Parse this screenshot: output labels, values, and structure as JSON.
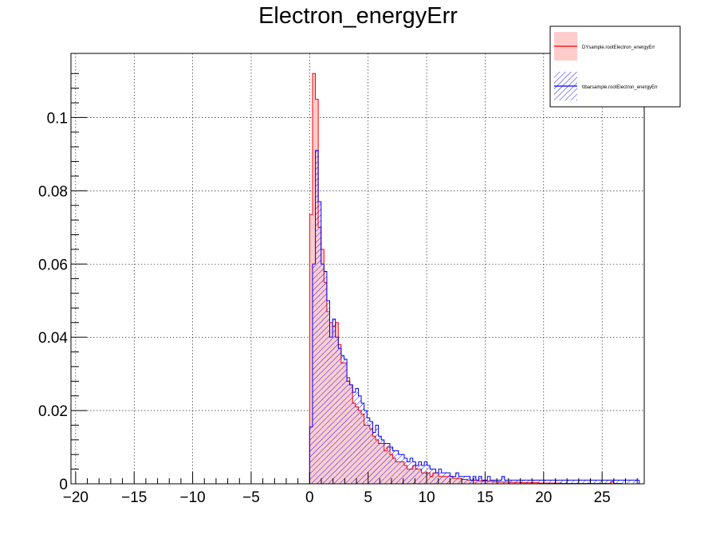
{
  "chart_data": {
    "type": "histogram",
    "title": "Electron_energyErr",
    "xlabel": "",
    "ylabel": "",
    "xlim": [
      -20.4,
      28.6
    ],
    "ylim": [
      0,
      0.1175
    ],
    "grid": true,
    "legend_position": "top-right",
    "x_ticks": [
      -20,
      -15,
      -10,
      -5,
      0,
      5,
      10,
      15,
      20,
      25
    ],
    "x_tick_labels": [
      "−20",
      "−15",
      "−10",
      "−5",
      "0",
      "5",
      "10",
      "15",
      "20",
      "25"
    ],
    "y_ticks": [
      0,
      0.02,
      0.04,
      0.06,
      0.08,
      0.1
    ],
    "y_tick_labels": [
      "0",
      "0.02",
      "0.04",
      "0.06",
      "0.08",
      "0.1"
    ],
    "bin_width": 0.245,
    "series": [
      {
        "name": "DYsample.rootElectron_energyErr",
        "color": "#ff0000",
        "fill": "#ffcccc",
        "x": [
          0.1225,
          0.3675,
          0.6125,
          0.8575,
          1.1025,
          1.3475,
          1.5925,
          1.8375,
          2.0825,
          2.3275,
          2.5725,
          2.8175,
          3.0625,
          3.3075,
          3.5525,
          3.7975,
          4.0425,
          4.2875,
          4.5325,
          4.7775,
          5.0225,
          5.2675,
          5.5125,
          5.7575,
          6.0025,
          6.2475,
          6.4925,
          6.7375,
          6.9825,
          7.2275,
          7.4725,
          7.7175,
          7.9625,
          8.2075,
          8.4525,
          8.6975,
          8.9425,
          9.1875,
          9.4325,
          9.6775,
          9.9225,
          10.1675,
          10.4125,
          10.6575,
          10.9025,
          11.1475,
          11.3925,
          11.6375,
          11.8825,
          12.1275,
          12.3725,
          12.6175,
          12.8625,
          13.1075,
          13.3525,
          13.5975,
          13.8425,
          14.0875,
          14.3325,
          14.5775,
          14.8225,
          15.0675,
          15.3125,
          15.5575,
          15.8025,
          16.0475,
          16.2925,
          16.5375,
          16.7825,
          17.0275,
          17.2725,
          17.5175,
          17.7625,
          18.0075,
          18.2525,
          18.4975,
          18.7425,
          18.9875,
          19.2325,
          19.4775,
          19.7225,
          19.9675,
          20.2125,
          20.4575,
          20.7025,
          20.9475,
          21.1925,
          21.4375,
          21.6825,
          21.9275,
          22.1725,
          22.4175,
          22.6625,
          22.9075,
          23.1525,
          23.3975,
          23.6425,
          23.8875,
          24.1325,
          24.3775,
          24.6225,
          24.8675,
          25.1125,
          25.3575,
          25.6025,
          25.8475,
          26.0925,
          26.3375,
          26.5825
        ],
        "values": [
          0.0735,
          0.112,
          0.105,
          0.07,
          0.064,
          0.055,
          0.047,
          0.044,
          0.043,
          0.044,
          0.038,
          0.033,
          0.033,
          0.029,
          0.027,
          0.022,
          0.021,
          0.02,
          0.019,
          0.016,
          0.016,
          0.015,
          0.013,
          0.012,
          0.011,
          0.011,
          0.009,
          0.01,
          0.008,
          0.007,
          0.006,
          0.006,
          0.006,
          0.005,
          0.004,
          0.004,
          0.005,
          0.004,
          0.004,
          0.003,
          0.003,
          0.003,
          0.002,
          0.003,
          0.003,
          0.002,
          0.002,
          0.002,
          0.002,
          0.002,
          0.0015,
          0.0015,
          0.0015,
          0.0012,
          0.0012,
          0.001,
          0.001,
          0.001,
          0.001,
          0.0008,
          0.0008,
          0.0008,
          0.0007,
          0.0007,
          0.0006,
          0.0006,
          0.0005,
          0.0005,
          0.0005,
          0.0005,
          0.0004,
          0.0004,
          0.0004,
          0.0004,
          0.0003,
          0.0003,
          0.0003,
          0.0003,
          0.0003,
          0.0003,
          0.0002,
          0.0002,
          0.0002,
          0.0002,
          0.0002,
          0.0002,
          0.0002,
          0.0002,
          0.0001,
          0.0001,
          0.0001,
          0.0001,
          0.0001,
          0.0001,
          0.0001,
          0.0001,
          0.0001,
          0.0001,
          0.0001,
          0.0001,
          0.0001,
          0.0001,
          0.0001,
          0.0001,
          0.0001,
          0.0006,
          0.0001,
          0.0001,
          0.0001
        ]
      },
      {
        "name": "ttbarsample.rootElectron_energyErr",
        "color": "#0000ff",
        "fill": "hatched",
        "x": [
          0.1225,
          0.3675,
          0.6125,
          0.8575,
          1.1025,
          1.3475,
          1.5925,
          1.8375,
          2.0825,
          2.3275,
          2.5725,
          2.8175,
          3.0625,
          3.3075,
          3.5525,
          3.7975,
          4.0425,
          4.2875,
          4.5325,
          4.7775,
          5.0225,
          5.2675,
          5.5125,
          5.7575,
          6.0025,
          6.2475,
          6.4925,
          6.7375,
          6.9825,
          7.2275,
          7.4725,
          7.7175,
          7.9625,
          8.2075,
          8.4525,
          8.6975,
          8.9425,
          9.1875,
          9.4325,
          9.6775,
          9.9225,
          10.1675,
          10.4125,
          10.6575,
          10.9025,
          11.1475,
          11.3925,
          11.6375,
          11.8825,
          12.1275,
          12.3725,
          12.6175,
          12.8625,
          13.1075,
          13.3525,
          13.5975,
          13.8425,
          14.0875,
          14.3325,
          14.5775,
          14.8225,
          15.0675,
          15.3125,
          15.5575,
          15.8025,
          16.0475,
          16.2925,
          16.5375,
          16.7825,
          17.0275,
          17.2725,
          17.5175,
          17.7625,
          18.0075,
          18.2525,
          18.4975,
          18.7425,
          18.9875,
          19.2325,
          19.4775,
          19.7225,
          19.9675,
          20.2125,
          20.4575,
          20.7025,
          20.9475,
          21.1925,
          21.4375,
          21.6825,
          21.9275,
          22.1725,
          22.4175,
          22.6625,
          22.9075,
          23.1525,
          23.3975,
          23.6425,
          23.8875,
          24.1325,
          24.3775,
          24.6225,
          24.8675,
          25.1125,
          25.3575,
          25.6025,
          25.8475,
          26.0925,
          26.3375,
          26.5825,
          26.8275,
          27.0725,
          27.3175,
          27.5625,
          27.8075,
          28.0525
        ],
        "values": [
          0.0155,
          0.06,
          0.091,
          0.077,
          0.06,
          0.058,
          0.05,
          0.04,
          0.045,
          0.04,
          0.037,
          0.035,
          0.034,
          0.028,
          0.027,
          0.025,
          0.026,
          0.024,
          0.022,
          0.02,
          0.018,
          0.017,
          0.014,
          0.016,
          0.013,
          0.012,
          0.011,
          0.011,
          0.01,
          0.009,
          0.009,
          0.008,
          0.008,
          0.007,
          0.006,
          0.007,
          0.006,
          0.005,
          0.006,
          0.005,
          0.006,
          0.005,
          0.004,
          0.004,
          0.003,
          0.004,
          0.003,
          0.003,
          0.003,
          0.002,
          0.002,
          0.003,
          0.002,
          0.002,
          0.002,
          0.002,
          0.001,
          0.002,
          0.001,
          0.002,
          0.001,
          0.001,
          0.002,
          0.001,
          0.001,
          0.001,
          0.001,
          0.002,
          0.001,
          0.001,
          0.001,
          0.001,
          0.001,
          0.001,
          0.001,
          0.001,
          0.001,
          0.001,
          0.001,
          0.001,
          0.001,
          0.001,
          0.001,
          0.001,
          0.001,
          0.001,
          0.001,
          0.001,
          0.001,
          0.001,
          0.001,
          0.001,
          0.001,
          0.001,
          0.001,
          0.001,
          0.001,
          0.001,
          0.001,
          0.001,
          0.001,
          0.001,
          0.001,
          0.001,
          0.001,
          0.001,
          0.001,
          0.001,
          0.001,
          0.001,
          0.001,
          0.001,
          0.001,
          0.001,
          0.001
        ]
      }
    ]
  }
}
